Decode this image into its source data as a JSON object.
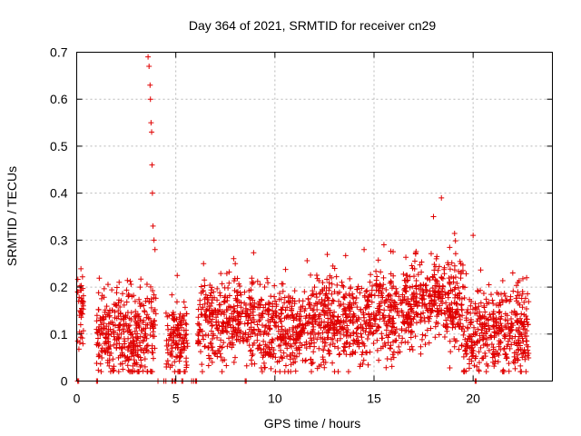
{
  "chart_data": {
    "type": "scatter",
    "title": "Day 364 of 2021, SRMTID for receiver cn29",
    "xlabel": "GPS time / hours",
    "ylabel": "SRMTID / TECUs",
    "xlim": [
      0,
      24
    ],
    "ylim": [
      0,
      0.7
    ],
    "x_ticks": [
      0,
      5,
      10,
      15,
      20
    ],
    "x_tick_labels": [
      "0",
      "5",
      "10",
      "15",
      "20"
    ],
    "y_ticks": [
      0,
      0.1,
      0.2,
      0.3,
      0.4,
      0.5,
      0.6,
      0.7
    ],
    "y_tick_labels": [
      "0",
      "0.1",
      "0.2",
      "0.3",
      "0.4",
      "0.5",
      "0.6",
      "0.7"
    ],
    "grid": true,
    "marker": "plus",
    "series_color": "#e00000",
    "series": [
      {
        "name": "SRMTID",
        "sampled_points": [
          {
            "x": 0.05,
            "y": 0.19
          },
          {
            "x": 0.1,
            "y": 0.17
          },
          {
            "x": 0.15,
            "y": 0.14
          },
          {
            "x": 0.2,
            "y": 0.12
          },
          {
            "x": 1.0,
            "y": 0.11
          },
          {
            "x": 1.2,
            "y": 0.13
          },
          {
            "x": 1.4,
            "y": 0.08
          },
          {
            "x": 1.6,
            "y": 0.1
          },
          {
            "x": 1.8,
            "y": 0.15
          },
          {
            "x": 2.0,
            "y": 0.07
          },
          {
            "x": 2.2,
            "y": 0.12
          },
          {
            "x": 2.4,
            "y": 0.09
          },
          {
            "x": 2.6,
            "y": 0.18
          },
          {
            "x": 2.8,
            "y": 0.1
          },
          {
            "x": 3.0,
            "y": 0.14
          },
          {
            "x": 3.2,
            "y": 0.2
          },
          {
            "x": 3.4,
            "y": 0.06
          },
          {
            "x": 3.5,
            "y": 0.12
          },
          {
            "x": 3.6,
            "y": 0.69
          },
          {
            "x": 3.65,
            "y": 0.67
          },
          {
            "x": 3.7,
            "y": 0.63
          },
          {
            "x": 3.72,
            "y": 0.6
          },
          {
            "x": 3.75,
            "y": 0.55
          },
          {
            "x": 3.78,
            "y": 0.53
          },
          {
            "x": 3.8,
            "y": 0.46
          },
          {
            "x": 3.82,
            "y": 0.4
          },
          {
            "x": 3.85,
            "y": 0.33
          },
          {
            "x": 3.9,
            "y": 0.3
          },
          {
            "x": 3.95,
            "y": 0.28
          },
          {
            "x": 4.6,
            "y": 0.06
          },
          {
            "x": 5.1,
            "y": 0.1
          },
          {
            "x": 5.4,
            "y": 0.08
          },
          {
            "x": 6.4,
            "y": 0.25
          },
          {
            "x": 7.0,
            "y": 0.15
          },
          {
            "x": 8.0,
            "y": 0.25
          },
          {
            "x": 9.0,
            "y": 0.1
          },
          {
            "x": 10.5,
            "y": 0.02
          },
          {
            "x": 12.0,
            "y": 0.2
          },
          {
            "x": 13.0,
            "y": 0.12
          },
          {
            "x": 14.5,
            "y": 0.28
          },
          {
            "x": 15.5,
            "y": 0.29
          },
          {
            "x": 16.0,
            "y": 0.05
          },
          {
            "x": 18.0,
            "y": 0.35
          },
          {
            "x": 18.4,
            "y": 0.39
          },
          {
            "x": 20.0,
            "y": 0.31
          },
          {
            "x": 21.0,
            "y": 0.04
          },
          {
            "x": 22.0,
            "y": 0.23
          },
          {
            "x": 22.7,
            "y": 0.22
          }
        ],
        "active_ranges_hours": [
          [
            0.05,
            0.35
          ],
          [
            1.0,
            4.0
          ],
          [
            4.5,
            5.6
          ],
          [
            6.1,
            9.0
          ],
          [
            9.1,
            11.9
          ],
          [
            11.9,
            14.7
          ],
          [
            14.7,
            17.0
          ],
          [
            17.0,
            19.6
          ],
          [
            19.6,
            22.8
          ]
        ],
        "zero_value_times_hours": [
          0.05,
          0.1,
          1.0,
          1.05,
          4.1,
          4.4,
          4.5,
          4.8,
          4.85,
          4.95,
          5.0,
          5.3,
          5.35,
          5.8,
          5.9,
          6.0,
          6.05,
          8.5,
          8.55,
          20.1,
          20.15
        ]
      }
    ]
  }
}
